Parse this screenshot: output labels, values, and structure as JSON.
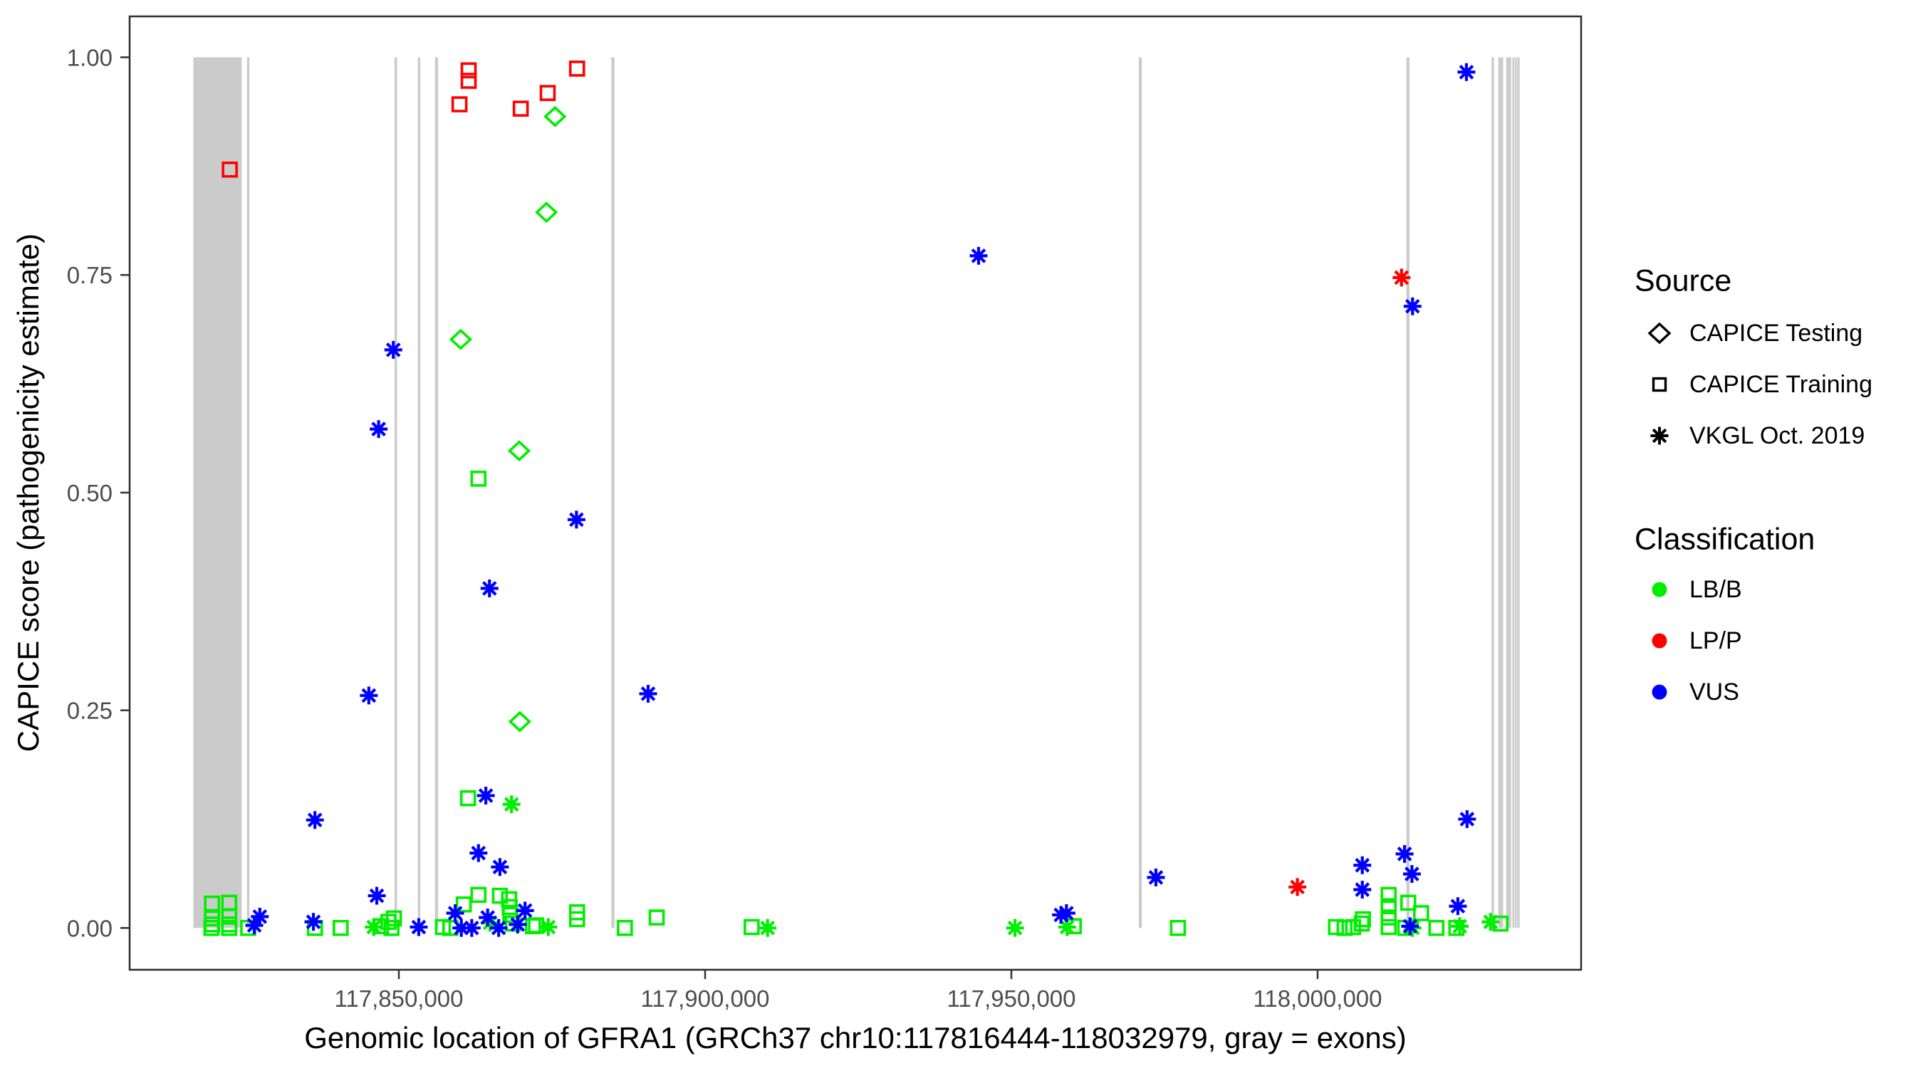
{
  "figure": {
    "description": "Scatter plot of CAPICE pathogenicity scores across the GFRA1 gene"
  },
  "chart_data": {
    "type": "scatter",
    "title": "",
    "xlabel": "Genomic location of GFRA1 (GRCh37 chr10:117816444-118032979, gray = exons)",
    "ylabel": "CAPICE score (pathogenicity estimate)",
    "x_domain": [
      117806046,
      118043025
    ],
    "y_domain": [
      -0.048,
      1.047
    ],
    "grid": "off",
    "panel_border_color": "#2b2b2b",
    "tick_label_color": "#4d4d4d",
    "exon_color": "#cbcbcb",
    "x_ticks": [
      {
        "value": 117850000,
        "label": "117,850,000"
      },
      {
        "value": 117900000,
        "label": "117,900,000"
      },
      {
        "value": 117950000,
        "label": "117,950,000"
      },
      {
        "value": 118000000,
        "label": "118,000,000"
      }
    ],
    "y_ticks": [
      {
        "value": 0.0,
        "label": "0.00"
      },
      {
        "value": 0.25,
        "label": "0.25"
      },
      {
        "value": 0.5,
        "label": "0.50"
      },
      {
        "value": 0.75,
        "label": "0.75"
      },
      {
        "value": 1.0,
        "label": "1.00"
      }
    ],
    "exons": [
      [
        117816444,
        117824350
      ],
      [
        117825200,
        117825600
      ],
      [
        117849300,
        117849700
      ],
      [
        117853100,
        117853500
      ],
      [
        117855900,
        117856400
      ],
      [
        117884700,
        117885200
      ],
      [
        117970800,
        117971300
      ],
      [
        118014500,
        118015000
      ],
      [
        118028400,
        118028800
      ],
      [
        118029500,
        118030300
      ],
      [
        118030800,
        118031600
      ],
      [
        118031800,
        118032100
      ],
      [
        118032200,
        118032500
      ],
      [
        118032600,
        118032979
      ]
    ],
    "series": [
      {
        "name": "CAPICE Training / LB/B",
        "source": "CAPICE Training",
        "classification": "LB/B",
        "shape": "square",
        "color": "#00ee00",
        "points": [
          [
            117819400,
            0.0
          ],
          [
            117819500,
            0.004
          ],
          [
            117819500,
            0.011
          ],
          [
            117819500,
            0.028
          ],
          [
            117822300,
            0.0
          ],
          [
            117822300,
            0.004
          ],
          [
            117822300,
            0.013
          ],
          [
            117822300,
            0.029
          ],
          [
            117825400,
            0.0
          ],
          [
            117836300,
            0.0
          ],
          [
            117840500,
            0.0
          ],
          [
            117847100,
            0.002
          ],
          [
            117848300,
            0.007
          ],
          [
            117848800,
            0.0
          ],
          [
            117849200,
            0.011
          ],
          [
            117857200,
            0.001
          ],
          [
            117858400,
            0.0
          ],
          [
            117860600,
            0.027
          ],
          [
            117861300,
            0.149
          ],
          [
            117863000,
            0.038
          ],
          [
            117863000,
            0.516
          ],
          [
            117866500,
            0.037
          ],
          [
            117868000,
            0.033
          ],
          [
            117868100,
            0.024
          ],
          [
            117868200,
            0.015
          ],
          [
            117868600,
            0.005
          ],
          [
            117871900,
            0.002
          ],
          [
            117872400,
            0.003
          ],
          [
            117879100,
            0.01
          ],
          [
            117879100,
            0.018
          ],
          [
            117886900,
            0.0
          ],
          [
            117892100,
            0.012
          ],
          [
            117907600,
            0.001
          ],
          [
            117960200,
            0.002
          ],
          [
            117977200,
            0.0
          ],
          [
            118003000,
            0.001
          ],
          [
            118004400,
            0.0
          ],
          [
            118005800,
            0.001
          ],
          [
            118007200,
            0.005
          ],
          [
            118007400,
            0.01
          ],
          [
            118011600,
            0.001
          ],
          [
            118011600,
            0.012
          ],
          [
            118011600,
            0.025
          ],
          [
            118011600,
            0.038
          ],
          [
            118014300,
            0.0
          ],
          [
            118014800,
            0.029
          ],
          [
            118016900,
            0.017
          ],
          [
            118019400,
            0.0
          ],
          [
            118022650,
            0.0
          ],
          [
            118029850,
            0.005
          ]
        ]
      },
      {
        "name": "VKGL Oct. 2019 / LB/B",
        "source": "VKGL Oct. 2019",
        "classification": "LB/B",
        "shape": "asterisk",
        "color": "#00ee00",
        "points": [
          [
            117845900,
            0.001
          ],
          [
            117864900,
            0.006
          ],
          [
            117868400,
            0.142
          ],
          [
            117874400,
            0.001
          ],
          [
            117910200,
            0.0
          ],
          [
            117950600,
            0.0
          ],
          [
            117959100,
            0.001
          ],
          [
            118015500,
            0.0
          ],
          [
            118023200,
            0.002
          ],
          [
            118028250,
            0.007
          ]
        ]
      },
      {
        "name": "CAPICE Testing / LB/B",
        "source": "CAPICE Testing",
        "classification": "LB/B",
        "shape": "diamond",
        "color": "#00ee00",
        "points": [
          [
            117860100,
            0.676
          ],
          [
            117869650,
            0.548
          ],
          [
            117869750,
            0.237
          ],
          [
            117874100,
            0.822
          ],
          [
            117875500,
            0.932
          ]
        ]
      },
      {
        "name": "VKGL Oct. 2019 / VUS",
        "source": "VKGL Oct. 2019",
        "classification": "VUS",
        "shape": "asterisk",
        "color": "#0000ff",
        "points": [
          [
            117826400,
            0.003
          ],
          [
            117827300,
            0.013
          ],
          [
            117836050,
            0.007
          ],
          [
            117836300,
            0.124
          ],
          [
            117845100,
            0.267
          ],
          [
            117846400,
            0.037
          ],
          [
            117846700,
            0.573
          ],
          [
            117849100,
            0.664
          ],
          [
            117853250,
            0.001
          ],
          [
            117859200,
            0.017
          ],
          [
            117860200,
            0.0
          ],
          [
            117861900,
            0.0
          ],
          [
            117863000,
            0.086
          ],
          [
            117864200,
            0.152
          ],
          [
            117864500,
            0.012
          ],
          [
            117864800,
            0.39
          ],
          [
            117866300,
            0.0
          ],
          [
            117866500,
            0.07
          ],
          [
            117869400,
            0.004
          ],
          [
            117870600,
            0.02
          ],
          [
            117879000,
            0.469
          ],
          [
            117890700,
            0.269
          ],
          [
            117944650,
            0.772
          ],
          [
            117958100,
            0.015
          ],
          [
            117959000,
            0.017
          ],
          [
            117973600,
            0.058
          ],
          [
            118007300,
            0.044
          ],
          [
            118007300,
            0.072
          ],
          [
            118014200,
            0.085
          ],
          [
            118015100,
            0.002
          ],
          [
            118015400,
            0.062
          ],
          [
            118015500,
            0.714
          ],
          [
            118022900,
            0.025
          ],
          [
            118024300,
            0.983
          ],
          [
            118024400,
            0.125
          ]
        ]
      },
      {
        "name": "CAPICE Training / LP/P",
        "source": "CAPICE Training",
        "classification": "LP/P",
        "shape": "square",
        "color": "#ff0000",
        "points": [
          [
            117822400,
            0.871
          ],
          [
            117859900,
            0.946
          ],
          [
            117861400,
            0.973
          ],
          [
            117861400,
            0.985
          ],
          [
            117869900,
            0.941
          ],
          [
            117874300,
            0.959
          ],
          [
            117879100,
            0.987
          ]
        ]
      },
      {
        "name": "VKGL Oct. 2019 / LP/P",
        "source": "VKGL Oct. 2019",
        "classification": "LP/P",
        "shape": "asterisk",
        "color": "#ff0000",
        "points": [
          [
            117996700,
            0.047
          ],
          [
            118013700,
            0.747
          ]
        ]
      }
    ],
    "legend": {
      "position": "right",
      "source": {
        "title": "Source",
        "items": [
          {
            "label": "CAPICE Testing",
            "shape": "diamond"
          },
          {
            "label": "CAPICE Training",
            "shape": "square"
          },
          {
            "label": "VKGL Oct. 2019",
            "shape": "asterisk"
          }
        ]
      },
      "classification": {
        "title": "Classification",
        "items": [
          {
            "label": "LB/B",
            "color": "#00ee00"
          },
          {
            "label": "LP/P",
            "color": "#ff0000"
          },
          {
            "label": "VUS",
            "color": "#0000ff"
          }
        ]
      }
    }
  }
}
